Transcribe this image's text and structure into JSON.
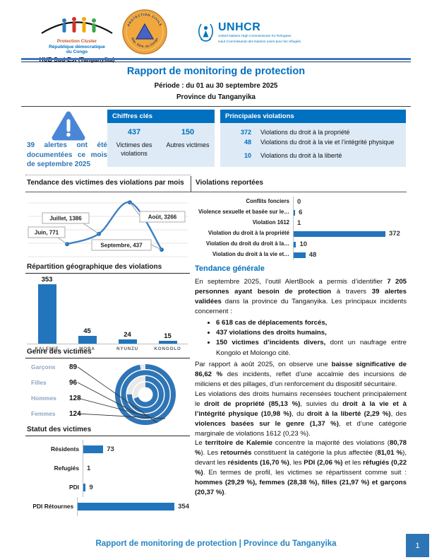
{
  "colors": {
    "accent_blue": "#0070C0",
    "bar_blue": "#2275BC",
    "light_blue": "#DEEBF7",
    "footer_blue": "#2383C4",
    "page_box_blue": "#2E75B6",
    "alert_blue": "#4A86D8"
  },
  "logos": {
    "cluster": {
      "line1": "Protection Cluster",
      "line2": "République démocratique",
      "line3": "du Congo",
      "line4": "HUB Sud-Est (Tanganyika)"
    },
    "civile": {
      "arc_top": "PROTECTION CIVILE",
      "arc_bottom": "Rép. Dém. du Congo"
    },
    "unhcr": {
      "name": "UNHCR",
      "sub1": "United Nations High Commissioner for Refugees",
      "sub2": "Haut Commissariat des Nations unies pour les réfugiés"
    }
  },
  "title_block": {
    "title": "Rapport de monitoring de protection",
    "periode": "Période : du 01 au 30 septembre 2025",
    "province": "Province du Tanganyika"
  },
  "alert": {
    "text": "39 alertes ont été documentées ce mois de septembre 2025"
  },
  "chiffres": {
    "title": "Chiffres clés",
    "items": [
      {
        "value": "437",
        "label": "Victimes des violations"
      },
      {
        "value": "150",
        "label": "Autres victimes"
      }
    ]
  },
  "principales": {
    "title": "Principales violations",
    "items": [
      {
        "value": "372",
        "label": "Violations du droit à la propriété"
      },
      {
        "value": "48",
        "label": "Violations du droit à la vie et l’intégrité physique"
      },
      {
        "value": "10",
        "label": "Violations du droit à la liberté"
      }
    ]
  },
  "chart_data": [
    {
      "type": "line",
      "title": "Tendance des victimes des violations par mois",
      "x": [
        "Juin",
        "Juillet",
        "Août",
        "Septembre"
      ],
      "values": [
        771,
        1386,
        3266,
        437
      ],
      "point_labels": [
        "Juin, 771",
        "Juillet, 1386",
        "Août, 3266",
        "Septembre, 437"
      ],
      "ylim": [
        0,
        3500
      ],
      "grid": true,
      "legend": "none"
    },
    {
      "type": "bar",
      "orientation": "horizontal",
      "title": "Violations reportées",
      "categories": [
        "Conflits fonciers",
        "Violence sexuelle et basée sur le…",
        "Violation 1612",
        "Violation du droit à la propriété",
        "Violation du droit du droit à la…",
        "Violation du droit à la vie et…"
      ],
      "values": [
        0,
        6,
        1,
        372,
        10,
        48
      ],
      "xlim": [
        0,
        400
      ],
      "grid": false,
      "legend": "none"
    },
    {
      "type": "bar",
      "orientation": "vertical",
      "title": "Répartition géographique des violations",
      "categories": [
        "KALEMIE",
        "MOBA",
        "NYUNZU",
        "KONGOLO"
      ],
      "values": [
        353,
        45,
        24,
        15
      ],
      "ylim": [
        0,
        353
      ],
      "grid": false,
      "legend": "none"
    },
    {
      "type": "radial-bar",
      "title": "Genre des victimes",
      "categories": [
        "Garçons",
        "Filles",
        "Hommes",
        "Femmes"
      ],
      "values": [
        89,
        96,
        128,
        124
      ],
      "legend": "left"
    },
    {
      "type": "bar",
      "orientation": "horizontal",
      "title": "Statut des victimes",
      "categories": [
        "Résidents",
        "Refugiés",
        "PDI",
        "PDI Rétournes"
      ],
      "values": [
        73,
        1,
        9,
        354
      ],
      "xlim": [
        0,
        400
      ],
      "grid": false,
      "legend": "none"
    }
  ],
  "tendance": {
    "heading": "Tendance générale",
    "p1": [
      {
        "t": "En septembre 2025, l’outil AlertBook a permis d’identifier ",
        "b": false
      },
      {
        "t": "7 205 personnes ayant besoin de protection",
        "b": true
      },
      {
        "t": " à travers ",
        "b": false
      },
      {
        "t": "39 alertes validées",
        "b": true
      },
      {
        "t": " dans la province du Tanganyika. Les principaux incidents concernent :",
        "b": false
      }
    ],
    "bullets": [
      [
        {
          "t": "6 618 cas de déplacements forcés,",
          "b": true
        }
      ],
      [
        {
          "t": "437 violations des droits humains,",
          "b": true
        }
      ],
      [
        {
          "t": "150 victimes d’incidents divers,",
          "b": true
        },
        {
          "t": " dont un naufrage entre Kongolo et Molongo cité.",
          "b": false
        }
      ]
    ],
    "p2": [
      {
        "t": "Par rapport à août 2025, on observe une ",
        "b": false
      },
      {
        "t": "baisse significative de 86,62 %",
        "b": true
      },
      {
        "t": " des incidents, reflet d’une accalmie des incursions de miliciens et des pillages, d’un renforcement du dispositif sécuritaire.",
        "b": false
      }
    ],
    "p3": [
      {
        "t": "Les violations des droits humains recensées touchent principalement le ",
        "b": false
      },
      {
        "t": "droit de propriété (85,13 %)",
        "b": true
      },
      {
        "t": ", suivies du ",
        "b": false
      },
      {
        "t": "droit à la vie et à l’intégrité physique (10,98 %)",
        "b": true
      },
      {
        "t": ", du ",
        "b": false
      },
      {
        "t": "droit à la liberté (2,29 %)",
        "b": true
      },
      {
        "t": ", des ",
        "b": false
      },
      {
        "t": "violences basées sur le genre (1,37 %)",
        "b": true
      },
      {
        "t": ", et d’une catégorie marginale de violations 1612 (0,23 %).",
        "b": false
      }
    ],
    "p4": [
      {
        "t": "Le ",
        "b": false
      },
      {
        "t": "territoire de Kalemie",
        "b": true
      },
      {
        "t": " concentre la majorité des violations (",
        "b": false
      },
      {
        "t": "80,78 %",
        "b": true
      },
      {
        "t": "). Les ",
        "b": false
      },
      {
        "t": "retournés",
        "b": true
      },
      {
        "t": " constituent la catégorie la plus affectée (",
        "b": false
      },
      {
        "t": "81,01 %",
        "b": true
      },
      {
        "t": "), devant les ",
        "b": false
      },
      {
        "t": "résidents (16,70 %)",
        "b": true
      },
      {
        "t": ", les ",
        "b": false
      },
      {
        "t": "PDI (2,06 %)",
        "b": true
      },
      {
        "t": " et les ",
        "b": false
      },
      {
        "t": "réfugiés (0,22 %)",
        "b": true
      },
      {
        "t": ". En termes de profil, les victimes se répartissent comme suit : ",
        "b": false
      },
      {
        "t": "hommes (29,29 %), femmes (28,38 %), filles (21,97 %) et garçons (20,37 %)",
        "b": true
      },
      {
        "t": ".",
        "b": false
      }
    ]
  },
  "footer": {
    "text": "Rapport de monitoring de protection  |  Province du Tanganyika",
    "page": "1"
  }
}
